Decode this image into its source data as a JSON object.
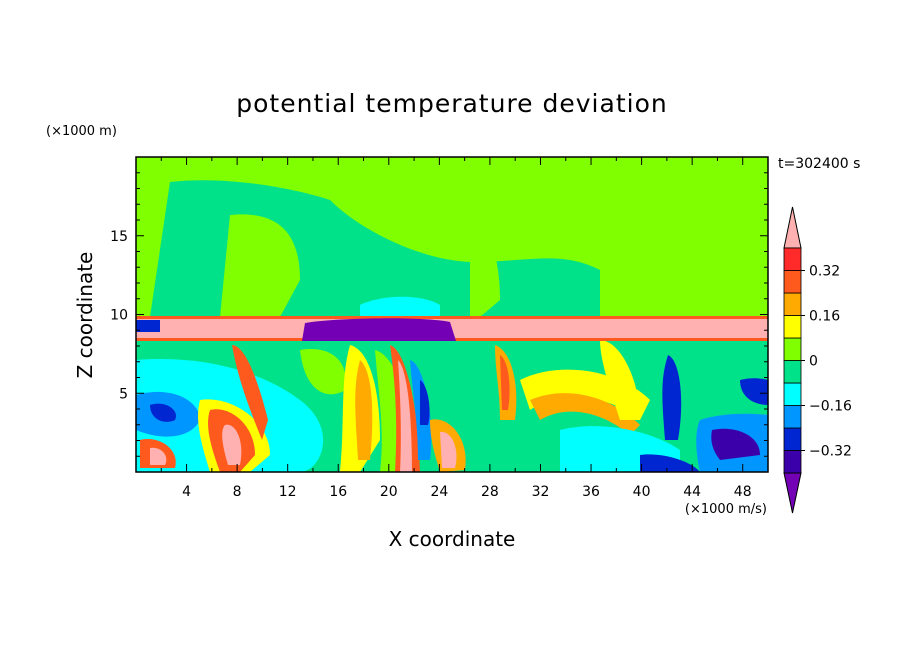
{
  "chart_data": {
    "type": "heatmap",
    "title": "potential temperature deviation",
    "xlabel": "X coordinate",
    "ylabel": "Z coordinate",
    "x_unit_label": "(×1000 m/s)",
    "y_unit_label": "(×1000 m)",
    "time_label": "t=302400 s",
    "xlim": [
      0,
      50
    ],
    "ylim": [
      0,
      20
    ],
    "x_ticks": [
      4,
      8,
      12,
      16,
      20,
      24,
      28,
      32,
      36,
      40,
      44,
      48
    ],
    "x_tick_labels": [
      "4",
      "8",
      "12",
      "16",
      "20",
      "24",
      "28",
      "32",
      "36",
      "40",
      "44",
      "48"
    ],
    "y_ticks": [
      5,
      10,
      15
    ],
    "y_tick_labels": [
      "5",
      "10",
      "15"
    ],
    "colorbar": {
      "levels": [
        -0.4,
        -0.32,
        -0.24,
        -0.16,
        -0.08,
        0,
        0.08,
        0.16,
        0.24,
        0.32,
        0.4
      ],
      "labels": [
        "0.32",
        "0.16",
        "0",
        "−0.16",
        "−0.32"
      ],
      "label_values": [
        0.32,
        0.16,
        0,
        -0.16,
        -0.32
      ],
      "colors": [
        "#7300b4",
        "#3c00aa",
        "#0026d2",
        "#0096ff",
        "#00ffff",
        "#00e28a",
        "#7fff00",
        "#ffff00",
        "#ffaa00",
        "#ff5a1e",
        "#ff2a2a",
        "#ffb0b0"
      ],
      "extend": "both"
    },
    "regions": [
      {
        "kind": "tropopause_band",
        "z_min": 8.3,
        "z_max": 9.8,
        "value": 0.45
      },
      {
        "kind": "anomaly_blob",
        "x_min": 13.5,
        "x_max": 25.5,
        "z_min": 8.3,
        "z_max": 9.8,
        "value": -0.45
      }
    ]
  }
}
